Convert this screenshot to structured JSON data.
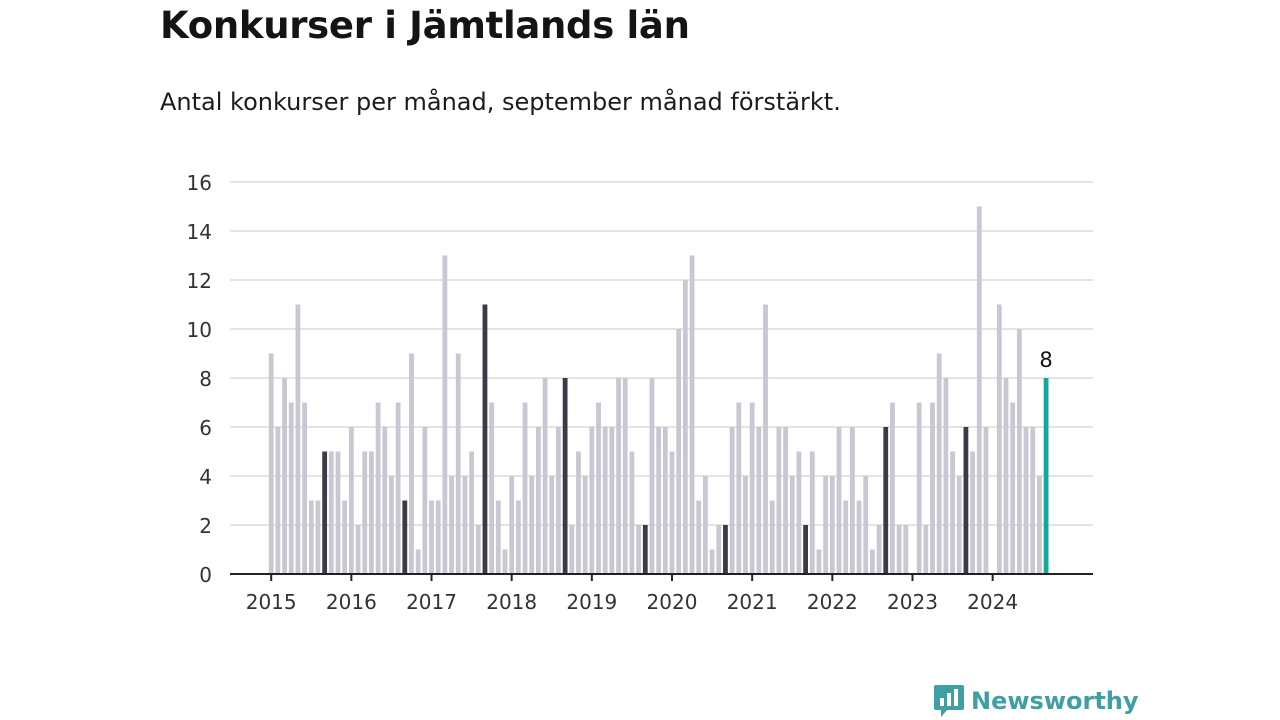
{
  "chart_data": {
    "type": "bar",
    "title": "Konkurser i Jämtlands län",
    "subtitle": "Antal konkurser per månad, september månad förstärkt.",
    "xlabel": "",
    "ylabel": "",
    "ylim": [
      0,
      16
    ],
    "y_ticks": [
      0,
      2,
      4,
      6,
      8,
      10,
      12,
      14,
      16
    ],
    "x_tick_labels": [
      "2015",
      "2016",
      "2017",
      "2018",
      "2019",
      "2020",
      "2021",
      "2022",
      "2023",
      "2024"
    ],
    "grid": true,
    "legend": "none",
    "start": "2015-01",
    "values": [
      9,
      6,
      8,
      7,
      11,
      7,
      3,
      3,
      5,
      5,
      5,
      3,
      6,
      2,
      5,
      5,
      7,
      6,
      4,
      7,
      3,
      9,
      1,
      6,
      3,
      3,
      13,
      4,
      9,
      4,
      5,
      2,
      11,
      7,
      3,
      1,
      4,
      3,
      7,
      4,
      6,
      8,
      4,
      6,
      8,
      2,
      5,
      4,
      6,
      7,
      6,
      6,
      8,
      8,
      5,
      2,
      2,
      8,
      6,
      6,
      5,
      10,
      12,
      13,
      3,
      4,
      1,
      2,
      2,
      6,
      7,
      4,
      7,
      6,
      11,
      3,
      6,
      6,
      4,
      5,
      2,
      5,
      1,
      4,
      4,
      6,
      3,
      6,
      3,
      4,
      1,
      2,
      6,
      7,
      2,
      2,
      0,
      7,
      2,
      7,
      9,
      8,
      5,
      4,
      6,
      5,
      15,
      6,
      0,
      11,
      8,
      7,
      10,
      6,
      6,
      4,
      8
    ],
    "highlight": "september",
    "last_value_label": "8",
    "colors": {
      "bar": "#c9c8d2",
      "september": "#3b3a48",
      "latest": "#14a89a",
      "grid": "#dcdcdc",
      "axis": "#222222",
      "tick_text": "#333333"
    }
  },
  "brand": {
    "name": "Newsworthy",
    "icon": "bar-chart-bubble-icon",
    "color": "#3e9fa5"
  }
}
